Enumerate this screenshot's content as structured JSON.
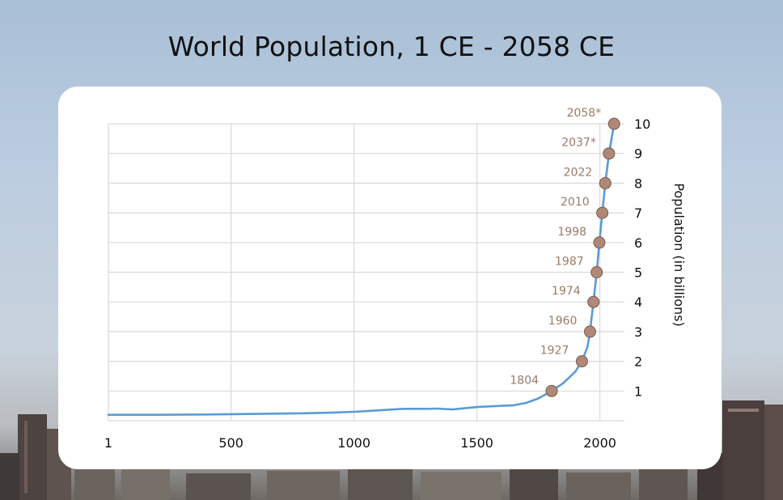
{
  "title": "World Population, 1 CE - 2058 CE",
  "colors": {
    "line": "#5b9bd5",
    "marker": "#b08878",
    "marker_edge": "#7a5a4a",
    "label": "#9a7b68",
    "grid": "#d9d9d9"
  },
  "chart_data": {
    "type": "line",
    "title": "World Population, 1 CE - 2058 CE",
    "xlabel": "",
    "ylabel": "Population (in billions)",
    "xlim": [
      1,
      2100
    ],
    "ylim": [
      0,
      10
    ],
    "x_ticks": [
      "1",
      "500",
      "1000",
      "1500",
      "2000"
    ],
    "y_ticks": [
      "1",
      "2",
      "3",
      "4",
      "5",
      "6",
      "7",
      "8",
      "9",
      "10"
    ],
    "y_axis_side": "right",
    "grid": true,
    "series": [
      {
        "x": [
          1,
          200,
          400,
          500,
          600,
          700,
          800,
          900,
          1000,
          1100,
          1200,
          1300,
          1340,
          1400,
          1500,
          1600,
          1650,
          1700,
          1750,
          1804,
          1850,
          1900,
          1927,
          1950,
          1960,
          1974,
          1987,
          1998,
          2010,
          2022,
          2037,
          2058
        ],
        "y": [
          0.2,
          0.2,
          0.21,
          0.22,
          0.23,
          0.24,
          0.25,
          0.27,
          0.3,
          0.35,
          0.4,
          0.4,
          0.41,
          0.38,
          0.46,
          0.5,
          0.52,
          0.6,
          0.75,
          1,
          1.26,
          1.65,
          2,
          2.5,
          3,
          4,
          5,
          6,
          7,
          8,
          9,
          10
        ]
      }
    ],
    "milestones": [
      {
        "year": 1804,
        "label": "1804",
        "value": 1
      },
      {
        "year": 1927,
        "label": "1927",
        "value": 2
      },
      {
        "year": 1960,
        "label": "1960",
        "value": 3
      },
      {
        "year": 1974,
        "label": "1974",
        "value": 4
      },
      {
        "year": 1987,
        "label": "1987",
        "value": 5
      },
      {
        "year": 1998,
        "label": "1998",
        "value": 6
      },
      {
        "year": 2010,
        "label": "2010",
        "value": 7
      },
      {
        "year": 2022,
        "label": "2022",
        "value": 8
      },
      {
        "year": 2037,
        "label": "2037*",
        "value": 9
      },
      {
        "year": 2058,
        "label": "2058*",
        "value": 10
      }
    ]
  }
}
